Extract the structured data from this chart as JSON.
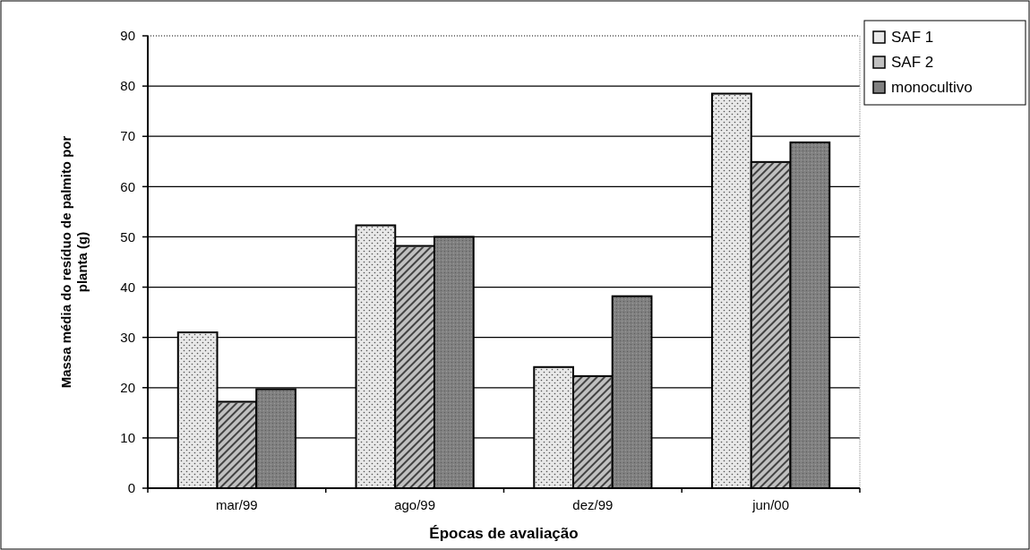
{
  "chart_data": {
    "type": "bar",
    "xlabel": "Épocas de avaliação",
    "ylabel": "Massa média do resíduo de palmito por planta (g)",
    "categories": [
      "mar/99",
      "ago/99",
      "dez/99",
      "jun/00"
    ],
    "series": [
      {
        "name": "SAF 1",
        "color": "#e8e8e8",
        "values": [
          31,
          52.3,
          24.1,
          78.5
        ]
      },
      {
        "name": "SAF 2",
        "color": "#c0c0c0",
        "values": [
          17.2,
          48.2,
          22.3,
          64.9
        ]
      },
      {
        "name": "monocultivo",
        "color": "#808080",
        "values": [
          19.7,
          50,
          38.2,
          68.8
        ]
      }
    ],
    "ylim": [
      0,
      90
    ],
    "yticks": [
      0,
      10,
      20,
      30,
      40,
      50,
      60,
      70,
      80,
      90
    ],
    "grid": "y",
    "legend": "top right"
  }
}
